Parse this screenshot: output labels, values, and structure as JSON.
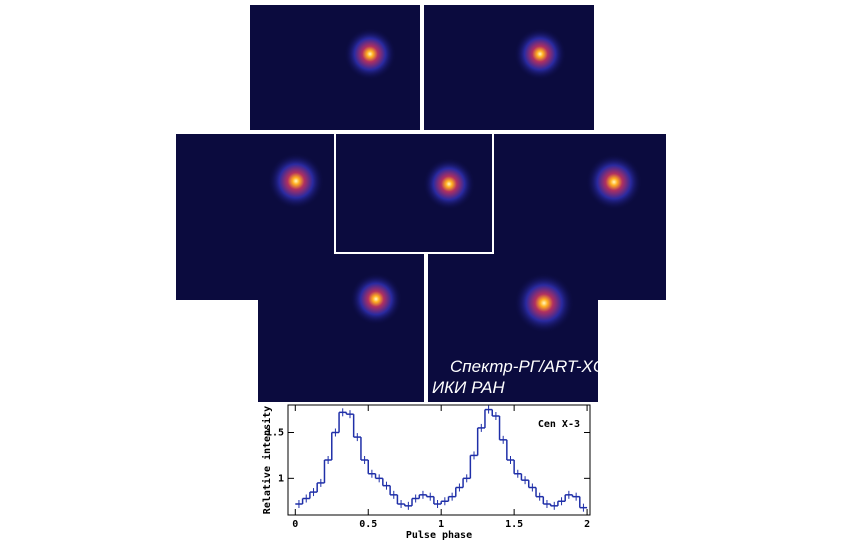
{
  "caption": [
    "Спектр-РГ/ART-XC",
    "ИКИ РАН"
  ],
  "chart_data": {
    "type": "step",
    "title": "Cen X-3",
    "xlabel": "Pulse phase",
    "ylabel": "Relative intensity",
    "color": "#1f2fa8",
    "x": [
      0,
      0.05,
      0.1,
      0.15,
      0.2,
      0.25,
      0.3,
      0.35,
      0.4,
      0.45,
      0.5,
      0.55,
      0.6,
      0.65,
      0.7,
      0.75,
      0.8,
      0.85,
      0.9,
      0.95,
      1,
      1.05,
      1.1,
      1.15,
      1.2,
      1.25,
      1.3,
      1.35,
      1.4,
      1.45,
      1.5,
      1.55,
      1.6,
      1.65,
      1.7,
      1.75,
      1.8,
      1.85,
      1.9,
      1.95
    ],
    "values": [
      0.72,
      0.78,
      0.85,
      0.95,
      1.2,
      1.5,
      1.72,
      1.7,
      1.45,
      1.2,
      1.05,
      1.0,
      0.92,
      0.82,
      0.72,
      0.7,
      0.78,
      0.82,
      0.8,
      0.72,
      0.75,
      0.8,
      0.9,
      1.0,
      1.25,
      1.55,
      1.75,
      1.68,
      1.42,
      1.2,
      1.05,
      0.98,
      0.9,
      0.8,
      0.72,
      0.7,
      0.75,
      0.82,
      0.8,
      0.68
    ],
    "xlim": [
      -0.05,
      2.02
    ],
    "ylim": [
      0.6,
      1.8
    ],
    "xticks": [
      0,
      0.5,
      1,
      1.5,
      2
    ],
    "yticks": [
      1,
      1.5
    ]
  }
}
